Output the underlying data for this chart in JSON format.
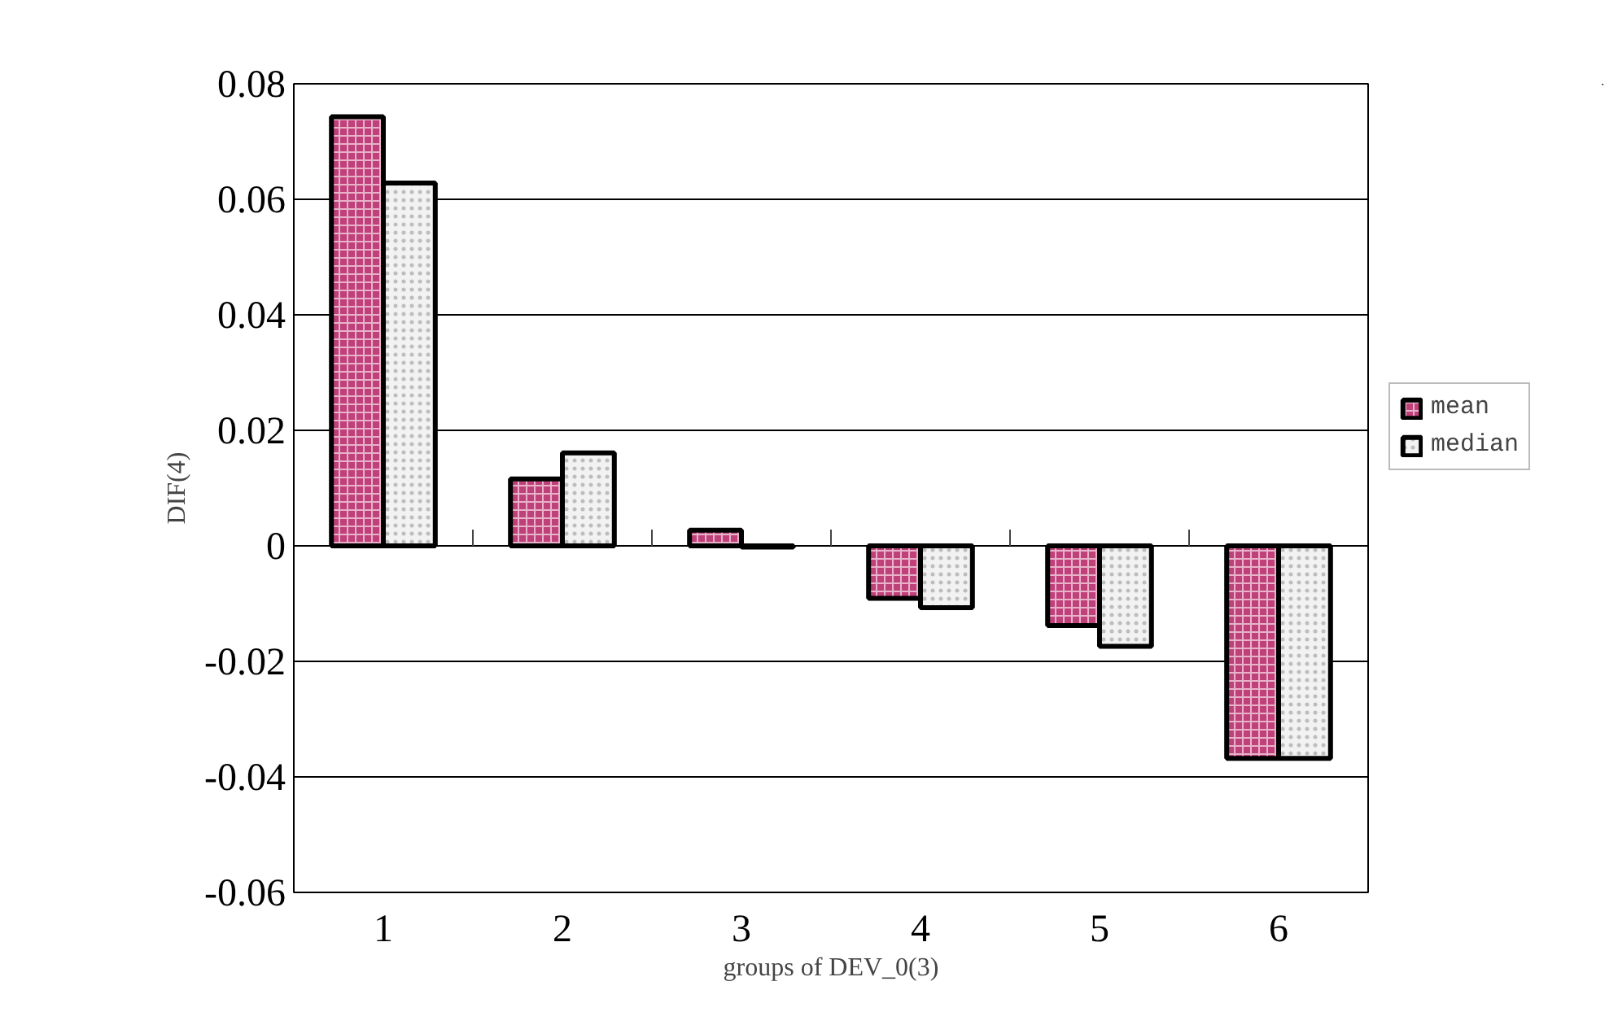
{
  "chart_data": {
    "type": "bar",
    "xlabel": "groups of DEV_0(3)",
    "ylabel": "DIF(4)",
    "categories": [
      "1",
      "2",
      "3",
      "4",
      "5",
      "6"
    ],
    "series": [
      {
        "name": "mean",
        "color": "#c0407a",
        "values": [
          0.0743,
          0.0116,
          0.0027,
          -0.0091,
          -0.0138,
          -0.0368
        ]
      },
      {
        "name": "median",
        "color": "#f2f2f2",
        "values": [
          0.0628,
          0.0161,
          -0.0002,
          -0.0107,
          -0.0174,
          -0.0368
        ]
      }
    ],
    "ylim": [
      -0.06,
      0.08
    ],
    "yticks": [
      -0.06,
      -0.04,
      -0.02,
      0,
      0.02,
      0.04,
      0.06,
      0.08
    ],
    "grid": "y",
    "legend": "right"
  }
}
